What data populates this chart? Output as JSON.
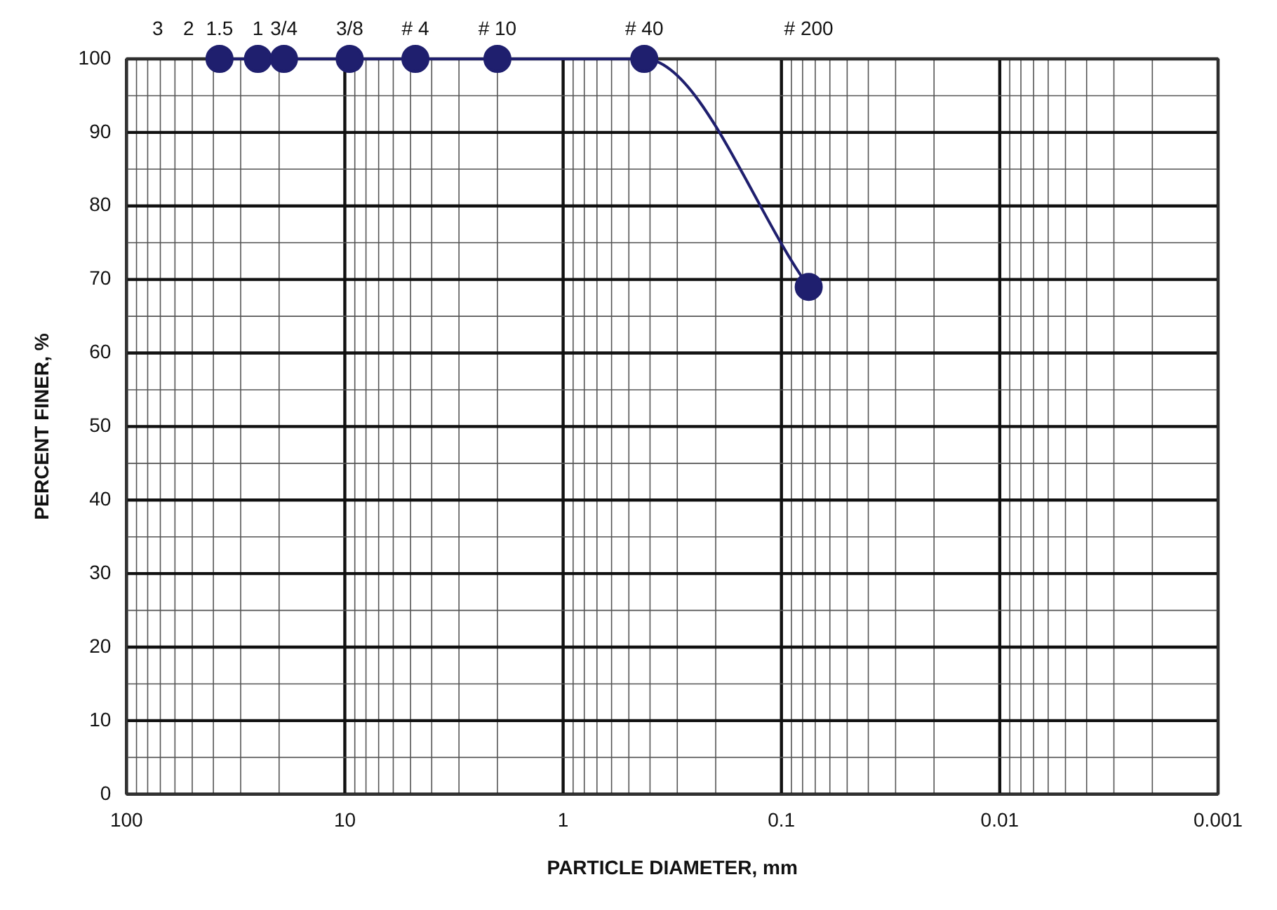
{
  "chart_data": {
    "type": "line",
    "xlabel": "PARTICLE DIAMETER, mm",
    "ylabel": "PERCENT FINER, %",
    "series": [
      {
        "color": "#1f1f6e",
        "x": [
          37.5,
          25,
          19,
          9.5,
          4.75,
          2,
          0.425,
          0.075
        ],
        "values": [
          100,
          100,
          100,
          100,
          100,
          100,
          100,
          69
        ]
      }
    ],
    "log": "x",
    "xlim": [
      100,
      0.001
    ],
    "xticks": [
      100,
      10,
      1,
      0.1,
      0.01,
      0.001
    ],
    "annotations": [
      "3",
      "2",
      "1.5",
      "1",
      "3/4",
      "3/8",
      "# 4",
      "# 10",
      "# 40",
      "# 200"
    ],
    "ylim": [
      0,
      100
    ],
    "yticks": [
      0,
      10,
      20,
      30,
      40,
      50,
      60,
      70,
      80,
      90,
      100
    ],
    "grid": true,
    "legend": false,
    "marker": "circle",
    "line_style": "solid"
  }
}
